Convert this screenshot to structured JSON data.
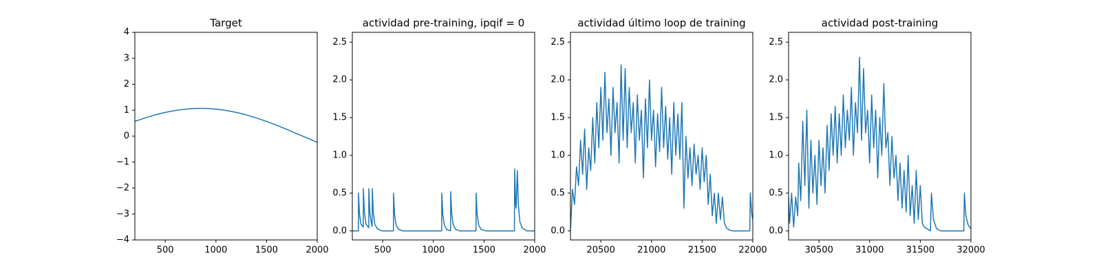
{
  "chart_data": [
    {
      "type": "line",
      "title": "Target",
      "color": "#1f77b4",
      "x": [
        200,
        300,
        400,
        500,
        600,
        700,
        800,
        900,
        1000,
        1100,
        1200,
        1300,
        1400,
        1500,
        1600,
        1700,
        1800,
        1900,
        2000
      ],
      "values": [
        0.57,
        0.7,
        0.82,
        0.915,
        0.99,
        1.04,
        1.07,
        1.07,
        1.04,
        0.99,
        0.915,
        0.82,
        0.7,
        0.565,
        0.42,
        0.26,
        0.09,
        -0.07,
        -0.24
      ],
      "xlim": [
        200,
        2000
      ],
      "ylim": [
        -4,
        4
      ],
      "xticks": [
        500,
        1000,
        1500,
        2000
      ],
      "yticks": [
        {
          "value": -4,
          "label": "−4"
        },
        {
          "value": -3,
          "label": "−3"
        },
        {
          "value": -2,
          "label": "−2"
        },
        {
          "value": -1,
          "label": "−1"
        },
        0,
        1,
        2,
        3,
        4
      ]
    },
    {
      "type": "line",
      "title": "actividad pre-training, ipqif = 0",
      "color": "#1f77b4",
      "x": [
        200,
        260,
        261,
        271,
        285,
        308,
        309,
        319,
        335,
        362,
        363,
        373,
        385,
        396,
        397,
        407,
        422,
        445,
        490,
        606,
        607,
        617,
        632,
        655,
        700,
        1082,
        1083,
        1093,
        1108,
        1131,
        1170,
        1171,
        1181,
        1196,
        1220,
        1260,
        1421,
        1422,
        1432,
        1447,
        1470,
        1520,
        1800,
        1801,
        1803,
        1812,
        1817,
        1829,
        1839,
        1854,
        1877,
        1920,
        2000
      ],
      "values": [
        0,
        0,
        0.5,
        0.22,
        0.09,
        0.05,
        0.56,
        0.25,
        0.09,
        0.04,
        0.56,
        0.25,
        0.12,
        0.06,
        0.56,
        0.25,
        0.09,
        0.03,
        0,
        0,
        0.5,
        0.22,
        0.08,
        0.02,
        0,
        0,
        0.5,
        0.22,
        0.08,
        0.02,
        0,
        0.52,
        0.23,
        0.08,
        0.02,
        0,
        0,
        0.5,
        0.22,
        0.08,
        0.02,
        0,
        0,
        0.45,
        0.82,
        0.35,
        0.3,
        0.8,
        0.35,
        0.12,
        0.04,
        0,
        0
      ],
      "xlim": [
        200,
        2000
      ],
      "ylim": [
        -0.12,
        2.63
      ],
      "xticks": [
        500,
        1000,
        1500,
        2000
      ],
      "yticks": [
        {
          "value": 0,
          "label": "0.0"
        },
        0.5,
        {
          "value": 1,
          "label": "1.0"
        },
        1.5,
        {
          "value": 2,
          "label": "2.0"
        },
        2.5
      ]
    },
    {
      "type": "line",
      "title": "actividad último loop de training",
      "color": "#1f77b4",
      "x": [
        20200,
        20220,
        20240,
        20260,
        20280,
        20300,
        20320,
        20340,
        20360,
        20380,
        20400,
        20420,
        20440,
        20460,
        20480,
        20500,
        20520,
        20540,
        20560,
        20580,
        20600,
        20620,
        20640,
        20660,
        20680,
        20700,
        20720,
        20740,
        20760,
        20780,
        20800,
        20820,
        20840,
        20860,
        20880,
        20900,
        20920,
        20940,
        20960,
        20980,
        21000,
        21020,
        21040,
        21060,
        21080,
        21100,
        21120,
        21140,
        21160,
        21180,
        21200,
        21220,
        21240,
        21260,
        21280,
        21300,
        21320,
        21340,
        21360,
        21380,
        21400,
        21420,
        21440,
        21460,
        21480,
        21500,
        21520,
        21540,
        21560,
        21580,
        21600,
        21620,
        21640,
        21660,
        21680,
        21700,
        21720,
        21740,
        21770,
        21800,
        21970,
        21975,
        21990,
        22000
      ],
      "values": [
        0,
        0.55,
        0.35,
        0.85,
        0.6,
        1.2,
        0.75,
        1.35,
        0.55,
        1.1,
        0.8,
        1.5,
        0.9,
        1.7,
        1.1,
        1.9,
        1.2,
        2.1,
        1.3,
        1.75,
        1.0,
        1.9,
        1.3,
        1.7,
        0.9,
        2.2,
        1.2,
        2.15,
        1.1,
        1.9,
        1.3,
        1.7,
        0.9,
        1.8,
        1.2,
        1.6,
        0.7,
        1.75,
        1.1,
        2.0,
        1.2,
        1.6,
        0.85,
        1.55,
        1.05,
        1.9,
        1.1,
        1.65,
        0.95,
        1.5,
        0.75,
        1.7,
        1.0,
        1.55,
        0.95,
        1.7,
        0.3,
        1.25,
        0.7,
        1.1,
        0.6,
        1.15,
        0.75,
        1.0,
        0.55,
        1.1,
        0.65,
        1.0,
        0.35,
        0.75,
        0.2,
        0.5,
        0.1,
        0.5,
        0.15,
        0.45,
        0.1,
        0.04,
        0.01,
        0,
        0,
        0.5,
        0.22,
        0.15
      ],
      "xlim": [
        20200,
        22000
      ],
      "ylim": [
        -0.12,
        2.63
      ],
      "xticks": [
        20500,
        21000,
        21500,
        22000
      ],
      "yticks": [
        {
          "value": 0,
          "label": "0.0"
        },
        0.5,
        {
          "value": 1,
          "label": "1.0"
        },
        1.5,
        {
          "value": 2,
          "label": "2.0"
        },
        2.5
      ]
    },
    {
      "type": "line",
      "title": "actividad post-training",
      "color": "#1f77b4",
      "x": [
        30200,
        30210,
        30230,
        30250,
        30270,
        30290,
        30300,
        30320,
        30340,
        30360,
        30380,
        30400,
        30420,
        30440,
        30460,
        30480,
        30500,
        30520,
        30540,
        30560,
        30580,
        30600,
        30620,
        30640,
        30660,
        30680,
        30700,
        30720,
        30740,
        30760,
        30780,
        30800,
        30820,
        30840,
        30860,
        30880,
        30900,
        30920,
        30940,
        30960,
        30980,
        31000,
        31020,
        31040,
        31060,
        31080,
        31100,
        31120,
        31140,
        31160,
        31180,
        31200,
        31220,
        31240,
        31260,
        31280,
        31300,
        31320,
        31340,
        31360,
        31380,
        31400,
        31420,
        31440,
        31460,
        31480,
        31500,
        31520,
        31540,
        31600,
        31610,
        31630,
        31660,
        31700,
        31930,
        31935,
        31950,
        31975,
        32000
      ],
      "values": [
        0.45,
        0.1,
        0.5,
        0.05,
        0.45,
        0.2,
        0.9,
        0.4,
        1.45,
        0.6,
        1.6,
        0.3,
        1.2,
        0.5,
        1.0,
        0.35,
        1.2,
        0.6,
        1.1,
        0.5,
        1.4,
        0.8,
        1.55,
        1.0,
        1.65,
        0.9,
        1.55,
        1.0,
        1.8,
        1.1,
        1.6,
        1.2,
        1.9,
        1.0,
        1.7,
        1.3,
        2.3,
        1.2,
        2.15,
        1.3,
        1.6,
        0.9,
        1.8,
        1.1,
        1.6,
        0.7,
        1.5,
        1.0,
        1.95,
        1.1,
        1.3,
        0.6,
        1.25,
        0.7,
        1.0,
        0.4,
        0.9,
        0.3,
        0.8,
        0.25,
        1.0,
        0.2,
        0.6,
        0.1,
        0.8,
        0.15,
        0.6,
        0.1,
        0.05,
        0,
        0.5,
        0.15,
        0.03,
        0,
        0,
        0.5,
        0.2,
        0.07,
        0.03
      ],
      "xlim": [
        30200,
        32000
      ],
      "ylim": [
        -0.12,
        2.63
      ],
      "xticks": [
        30500,
        31000,
        31500,
        32000
      ],
      "yticks": [
        {
          "value": 0,
          "label": "0.0"
        },
        0.5,
        {
          "value": 1,
          "label": "1.0"
        },
        1.5,
        {
          "value": 2,
          "label": "2.0"
        },
        2.5
      ]
    }
  ]
}
